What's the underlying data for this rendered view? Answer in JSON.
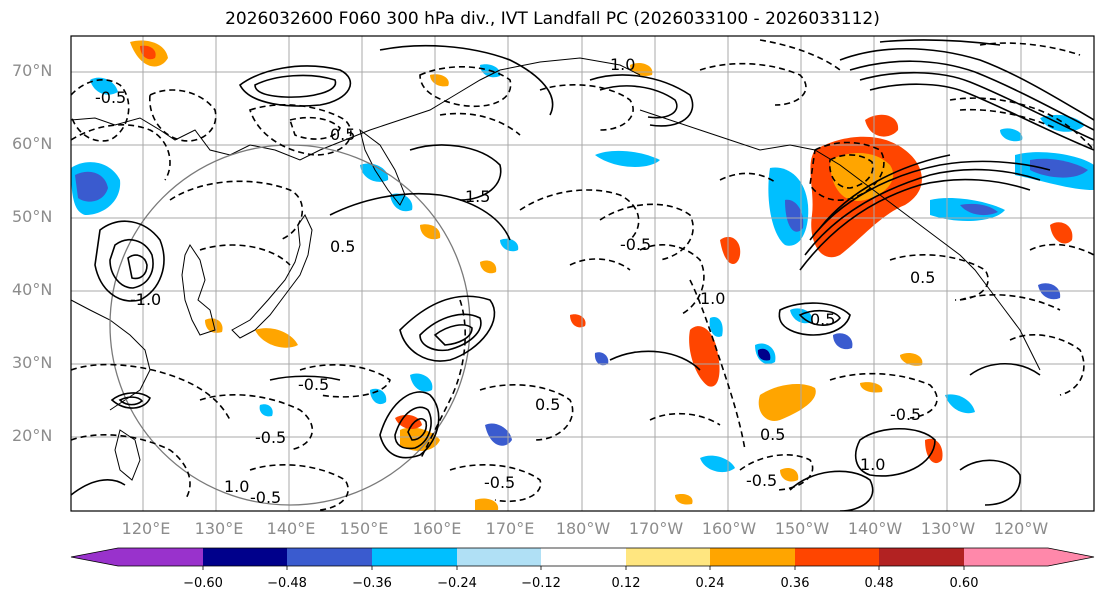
{
  "title": "2026032600 F060 300 hPa div., IVT Landfall PC (2026033100 - 2026033112)",
  "lat_labels": [
    "70°N",
    "60°N",
    "50°N",
    "40°N",
    "30°N",
    "20°N"
  ],
  "lon_labels": [
    "120°E",
    "130°E",
    "140°E",
    "150°E",
    "160°E",
    "170°E",
    "180°W",
    "170°W",
    "160°W",
    "150°W",
    "140°W",
    "130°W",
    "120°W"
  ],
  "colorbar": {
    "ticks": [
      "−0.60",
      "−0.48",
      "−0.36",
      "−0.24",
      "−0.12",
      "0.12",
      "0.24",
      "0.36",
      "0.48",
      "0.60"
    ],
    "colors": [
      "#9932cc",
      "#00008b",
      "#3a5bcf",
      "#00bfff",
      "#b0e0f5",
      "#ffffff",
      "#ffe680",
      "#ffa500",
      "#ff4500",
      "#b22222",
      "#ff88aa"
    ]
  },
  "contour_labels": [
    "-0.5",
    "0.5",
    "1.5",
    "1.0",
    "-1.0",
    "-0.5",
    "0.5",
    "-0.5",
    "1.0",
    "0.5",
    "-0.5",
    "-0.5",
    "0.5",
    "1.0",
    "-0.5",
    "0.5",
    "-0.5",
    "1.0",
    "0.5",
    "-0.5"
  ]
}
